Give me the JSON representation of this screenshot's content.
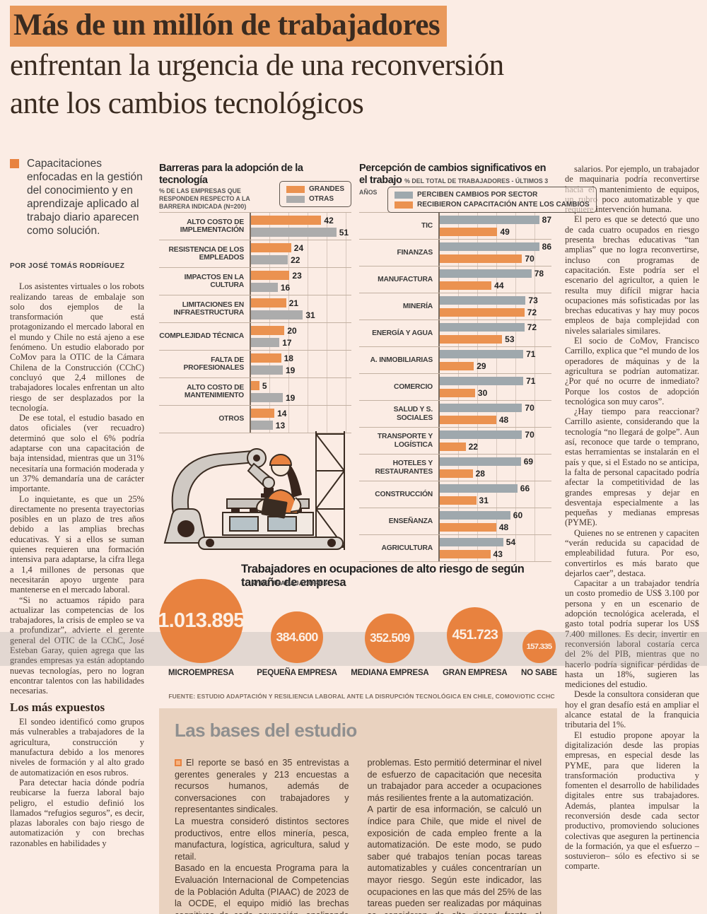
{
  "colors": {
    "page_bg": "#FBECE4",
    "headline_highlight": "#E9995B",
    "bar_orange": "#EB9250",
    "bar_gray": "#ACACAC",
    "bar_bluegray": "#9FA8AD",
    "bubble_orange": "#E8823F",
    "study_box_bg": "#E9D2BF"
  },
  "header": {
    "title_highlight": "Más de un millón de trabajadores",
    "title_line2": "enfrentan la urgencia de una reconversión",
    "title_line3": "ante los cambios tecnológicos"
  },
  "lede": "Capacitaciones enfocadas en la gestión del conocimiento y en aprendizaje aplicado al trabajo diario aparecen como solución.",
  "byline": "POR JOSÉ TOMÁS RODRÍGUEZ",
  "left_column": {
    "paragraphs": [
      "Los asistentes virtuales o los robots realizando tareas de embalaje son solo dos ejemplos de la transformación que está protagonizando el mercado laboral en el mundo y Chile no está ajeno a ese fenómeno. Un estudio elaborado por CoMov para la OTIC de la Cámara Chilena de la Construcción (CChC) concluyó que 2,4 millones de trabajadores locales enfrentan un alto riesgo de ser desplazados por la tecnología.",
      "De ese total, el estudio basado en datos oficiales (ver recuadro) determinó que solo el 6% podría adaptarse con una capacitación de baja intensidad, mientras que un 31% necesitaría una formación moderada y un 37% demandaría una de carácter importante.",
      "Lo inquietante, es que un 25% directamente no presenta trayectorias posibles en un plazo de tres años debido a las amplias brechas educativas. Y si a ellos se suman quienes requieren una formación intensiva para adaptarse, la cifra llega a 1,4 millones de personas que necesitarán apoyo urgente para mantenerse en el mercado laboral.",
      "“Si no actuamos rápido para actualizar las competencias de los trabajadores, la crisis de empleo se va a profundizar”, advierte el gerente general del OTIC de la CChC, José Esteban Garay, quien agrega que las grandes empresas ya están adoptando nuevas tecnologías, pero no logran encontrar talentos con las habilidades necesarias."
    ],
    "subhead": "Los más expuestos",
    "paragraphs2": [
      "El sondeo identificó como grupos más vulnerables a trabajadores de la agricultura, construcción y manufactura debido a los menores niveles de formación y al alto grado de automatización en esos rubros.",
      "Para detectar hacia dónde podría reubicarse la fuerza laboral bajo peligro, el estudio definió los llamados “refugios seguros”, es decir, plazas laborales con bajo riesgo de automatización y con brechas razonables en habilidades y"
    ]
  },
  "right_column": {
    "paragraphs": [
      "salarios. Por ejemplo, un trabajador de maquinaria podría reconvertirse hacia el mantenimiento de equipos, un rubro poco automatizable y que requiere intervención humana.",
      "El pero es que se detectó que uno de cada cuatro ocupados en riesgo presenta brechas educativas “tan amplias” que no logra reconvertirse, incluso con programas de capacitación. Este podría ser el escenario del agricultor, a quien le resulta muy difícil migrar hacia ocupaciones más sofisticadas por las brechas educativas y hay muy pocos empleos de baja complejidad con niveles salariales similares.",
      "El socio de CoMov, Francisco Carrillo, explica que “el mundo de los operadores de máquinas y de la agricultura se podrían automatizar. ¿Por qué no ocurre de inmediato? Porque los costos de adopción tecnológica son muy caros”.",
      "¿Hay tiempo para reaccionar? Carrillo asiente, considerando que la tecnología “no llegará de golpe”. Aun así, reconoce que tarde o temprano, estas herramientas se instalarán en el país y que, si el Estado no se anticipa, la falta de personal capacitado podría afectar la competitividad de las grandes empresas y dejar en desventaja especialmente a las pequeñas y medianas empresas (PYME).",
      "Quienes no se entrenen y capaciten “verán reducida su capacidad de empleabilidad futura. Por eso, convertirlos es más barato que dejarlos caer”, destaca.",
      "Capacitar a un trabajador tendría un costo promedio de US$ 3.100 por persona y en un escenario de adopción tecnológica acelerada, el gasto total podría superar los US$ 7.400 millones. Es decir, invertir en reconversión laboral costaría cerca del 2% del PIB, mientras que no hacerlo podría significar pérdidas de hasta un 18%, sugieren las mediciones del estudio.",
      "Desde la consultora consideran que hoy el gran desafío está en ampliar el alcance estatal de la franquicia tributaria del 1%.",
      "El estudio propone apoyar la digitalización desde las propias empresas, en especial desde las PYME, para que lideren la transformación productiva y fomenten el desarrollo de habilidades digitales entre sus trabajadores. Además, plantea impulsar la reconversión desde cada sector productivo, promoviendo soluciones colectivas que aseguren la pertinencia de la formación, ya que el esfuerzo –sostuvieron– sólo es efectivo si se comparte."
    ]
  },
  "chart_data": [
    {
      "type": "bar",
      "orientation": "horizontal",
      "title": "Barreras para la adopción de la tecnología",
      "subtitle": "% DE LAS EMPRESAS QUE RESPONDEN RESPECTO A LA BARRERA INDICADA (N=200)",
      "categories": [
        "ALTO COSTO DE IMPLEMENTACIÓN",
        "RESISTENCIA DE LOS EMPLEADOS",
        "IMPACTOS EN LA CULTURA",
        "LIMITACIONES EN INFRAESTRUCTURA",
        "COMPLEJIDAD TÉCNICA",
        "FALTA DE PROFESIONALES",
        "ALTO COSTO DE MANTENIMIENTO",
        "OTROS"
      ],
      "series": [
        {
          "name": "GRANDES",
          "color": "#EB9250",
          "values": [
            42,
            24,
            23,
            21,
            20,
            18,
            5,
            14
          ]
        },
        {
          "name": "OTRAS",
          "color": "#ACACAC",
          "values": [
            51,
            22,
            16,
            31,
            17,
            19,
            19,
            13
          ]
        }
      ],
      "xlim": [
        0,
        60
      ],
      "grid": true,
      "legend_position": "top-right"
    },
    {
      "type": "bar",
      "orientation": "horizontal",
      "title": "Percepción de cambios significativos en el trabajo",
      "subtitle": "% DEL TOTAL DE TRABAJADORES - ÚLTIMOS 3 AÑOS",
      "categories": [
        "TIC",
        "FINANZAS",
        "MANUFACTURA",
        "MINERÍA",
        "ENERGÍA Y AGUA",
        "A. INMOBILIARIAS",
        "COMERCIO",
        "SALUD Y S. SOCIALES",
        "TRANSPORTE Y LOGÍSTICA",
        "HOTELES Y RESTAURANTES",
        "CONSTRUCCIÓN",
        "ENSEÑANZA",
        "AGRICULTURA"
      ],
      "series": [
        {
          "name": "PERCIBEN CAMBIOS POR SECTOR",
          "color": "#9FA8AD",
          "values": [
            87,
            86,
            78,
            73,
            72,
            71,
            71,
            70,
            70,
            69,
            66,
            60,
            54
          ]
        },
        {
          "name": "RECIBIERON CAPACITACIÓN ANTE LOS CAMBIOS",
          "color": "#EB9250",
          "values": [
            49,
            70,
            44,
            72,
            53,
            29,
            30,
            48,
            22,
            28,
            31,
            48,
            43
          ]
        }
      ],
      "xlim": [
        0,
        95
      ],
      "grid": true,
      "legend_position": "top"
    },
    {
      "type": "bubble",
      "title": "Trabajadores en ocupaciones de alto riesgo de según tamaño de empresa",
      "subtitle": "N° DE TRABAJADORES",
      "categories": [
        "MICROEMPRESA",
        "PEQUEÑA EMPRESA",
        "MEDIANA EMPRESA",
        "GRAN EMPRESA",
        "NO SABE"
      ],
      "value_labels": [
        "1.013.895",
        "384.600",
        "352.509",
        "451.723",
        "157.335"
      ],
      "values": [
        1013895,
        384600,
        352509,
        451723,
        157335
      ],
      "source": "FUENTE: ESTUDIO ADAPTACIÓN Y RESILIENCIA LABORAL ANTE LA DISRUPCIÓN TECNOLÓGICA EN CHILE, COMOV/OTIC CCHC"
    }
  ],
  "study_box": {
    "title": "Las bases del estudio",
    "col1": [
      "El reporte se basó en 35 entrevistas a gerentes generales y 213 encuestas a recursos humanos, además de conversaciones con trabajadores y representantes sindicales.",
      "La muestra consideró distintos sectores productivos, entre ellos minería, pesca, manufactura, logística, agricultura, salud y retail.",
      "Basado en la encuesta Programa para la Evaluación Internacional de Competencias de la Población Adulta (PIAAC) de 2023 de la OCDE, el equipo midió las brechas cognitivas de cada ocupación, analizando habilidades como comprensión lectora, razonamiento y resolución de"
    ],
    "col2": [
      "problemas. Esto permitió determinar el nivel de esfuerzo de capacitación que necesita un trabajador para acceder a ocupaciones más resilientes frente a la automatización.",
      "A partir de esa información, se calculó un índice para Chile, que mide el nivel de exposición de cada empleo frente a la automatización. De este modo, se pudo saber qué trabajos tenían pocas tareas automatizables y cuáles concentrarían un mayor riesgo. Según este indicador, las ocupaciones en las que más del 25% de las tareas pueden ser realizadas por máquinas se consideran de alto riesgo frente al avance tecnológico."
    ]
  },
  "icons": {
    "lede_bullet": "orange-square",
    "box_bullet": "orange-square-outline"
  }
}
